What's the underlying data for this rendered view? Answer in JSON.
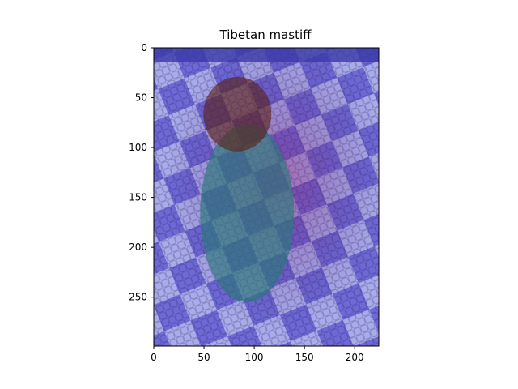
{
  "chart_data": {
    "type": "heatmap",
    "title": "Tibetan mastiff",
    "xlabel": "",
    "ylabel": "",
    "image_extent": {
      "width": 224,
      "height": 299
    },
    "xlim": [
      0,
      224
    ],
    "ylim": [
      299,
      0
    ],
    "x_ticks": [
      0,
      50,
      100,
      150,
      200
    ],
    "y_ticks": [
      0,
      50,
      100,
      150,
      200,
      250
    ],
    "y_axis_inverted": true,
    "grid": false,
    "legend": "none",
    "colormap": "jet",
    "overlay": "class activation heatmap over photo of a puppy on a checkered tile floor",
    "heat_peak": {
      "x": 80,
      "y": 60
    },
    "colors": {
      "low": "#2b2bb0",
      "mid": "#30d0e0",
      "high_mid": "#f0e030",
      "high": "#c01818",
      "floor_dark": "#5a2a8a",
      "floor_light": "#9aa0e0"
    }
  }
}
